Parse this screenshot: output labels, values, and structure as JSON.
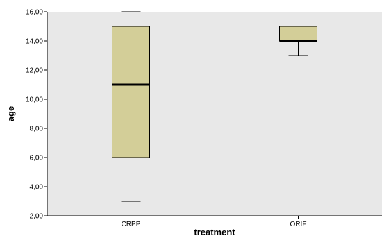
{
  "chart_data": {
    "type": "boxplot",
    "xlabel": "treatment",
    "ylabel": "age",
    "ylim": [
      2,
      16
    ],
    "y_ticks": [
      2,
      4,
      6,
      8,
      10,
      12,
      14,
      16
    ],
    "y_tick_labels": [
      "2,00",
      "4,00",
      "6,00",
      "8,00",
      "10,00",
      "12,00",
      "14,00",
      "16,00"
    ],
    "categories": [
      "CRPP",
      "ORIF"
    ],
    "boxes": [
      {
        "category": "CRPP",
        "min": 3,
        "q1": 6,
        "median": 11,
        "q3": 15,
        "max": 16
      },
      {
        "category": "ORIF",
        "min": 13,
        "q1": 14,
        "median": 14,
        "q3": 15,
        "max": 15
      }
    ],
    "grid": false,
    "colors": {
      "plot_background": "#e8e8e8",
      "box_fill": "#d3ce98",
      "line": "#000000"
    }
  }
}
